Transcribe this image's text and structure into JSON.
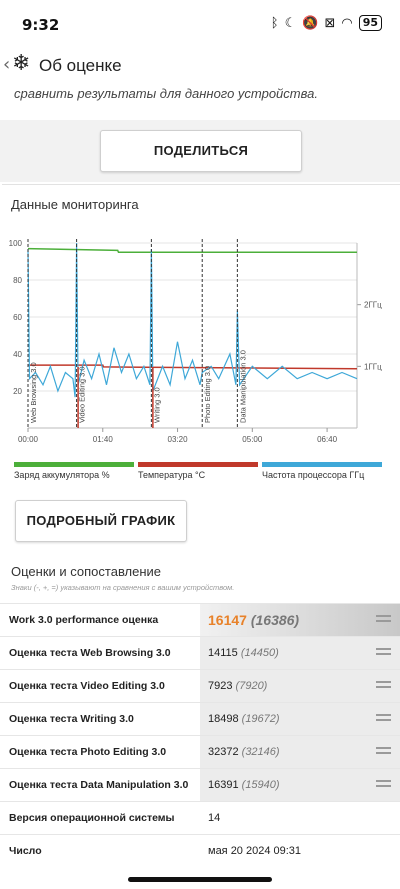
{
  "status_bar": {
    "time": "9:32",
    "icons": [
      "bluetooth-icon",
      "moon-icon",
      "mute-icon",
      "sim-off-icon",
      "wifi-icon"
    ],
    "battery": "95"
  },
  "app_bar": {
    "back_glyph": "‹",
    "title": "Об оценке"
  },
  "intro_text": "сравнить результаты для данного устройства.",
  "share_button": "ПОДЕЛИТЬСЯ",
  "monitoring": {
    "title": "Данные мониторинга",
    "legend": [
      {
        "label": "Заряд аккумулятора %",
        "color": "#4caf3a"
      },
      {
        "label": "Температура °C",
        "color": "#c0392b"
      },
      {
        "label": "Частота процессора ГГц",
        "color": "#3ea8d8"
      }
    ],
    "detail_button": "ПОДРОБНЫЙ ГРАФИК"
  },
  "chart_data": {
    "type": "line",
    "x_ticks": [
      "00:00",
      "01:40",
      "03:20",
      "05:00",
      "06:40"
    ],
    "y_left_ticks": [
      20,
      40,
      60,
      80,
      100
    ],
    "y_right_ticks": [
      "1ГГц",
      "2ГГц"
    ],
    "x_range_minutes": [
      0,
      440
    ],
    "y_left_range": [
      0,
      100
    ],
    "y_right_range_ghz": [
      0,
      3
    ],
    "markers": [
      {
        "label": "Web Browsing 3.0",
        "t_min": 0
      },
      {
        "label": "Video Editing 3.0",
        "t_min": 65
      },
      {
        "label": "Writing 3.0",
        "t_min": 165
      },
      {
        "label": "Photo Editing 3.0",
        "t_min": 233
      },
      {
        "label": "Data Manipulation 3.0",
        "t_min": 280
      }
    ],
    "series": [
      {
        "name": "Заряд аккумулятора %",
        "unit": "%",
        "points": [
          [
            0,
            97
          ],
          [
            120,
            96
          ],
          [
            121,
            95
          ],
          [
            440,
            95
          ]
        ]
      },
      {
        "name": "Температура °C",
        "unit": "°C",
        "points": [
          [
            0,
            34
          ],
          [
            100,
            34
          ],
          [
            101,
            33
          ],
          [
            440,
            32
          ]
        ]
      },
      {
        "name": "Частота процессора ГГц",
        "unit": "GHz",
        "points": [
          [
            0,
            2.9
          ],
          [
            2,
            0.8
          ],
          [
            10,
            0.9
          ],
          [
            20,
            0.7
          ],
          [
            30,
            1.0
          ],
          [
            40,
            0.6
          ],
          [
            50,
            0.9
          ],
          [
            60,
            0.8
          ],
          [
            63,
            0.5
          ],
          [
            65,
            3.0
          ],
          [
            67,
            0.7
          ],
          [
            75,
            1.1
          ],
          [
            85,
            0.8
          ],
          [
            95,
            1.2
          ],
          [
            105,
            0.7
          ],
          [
            115,
            1.3
          ],
          [
            125,
            0.9
          ],
          [
            135,
            1.2
          ],
          [
            145,
            0.8
          ],
          [
            155,
            1.0
          ],
          [
            163,
            0.7
          ],
          [
            165,
            2.9
          ],
          [
            167,
            0.6
          ],
          [
            180,
            1.0
          ],
          [
            190,
            0.7
          ],
          [
            200,
            1.4
          ],
          [
            210,
            0.8
          ],
          [
            220,
            1.1
          ],
          [
            230,
            0.7
          ],
          [
            233,
            0.9
          ],
          [
            245,
            1.0
          ],
          [
            255,
            0.8
          ],
          [
            270,
            1.2
          ],
          [
            278,
            0.7
          ],
          [
            280,
            1.9
          ],
          [
            283,
            0.7
          ],
          [
            300,
            1.0
          ],
          [
            320,
            0.8
          ],
          [
            340,
            1.0
          ],
          [
            360,
            0.8
          ],
          [
            380,
            0.9
          ],
          [
            400,
            0.8
          ],
          [
            420,
            0.9
          ],
          [
            440,
            0.8
          ]
        ]
      }
    ]
  },
  "scores": {
    "title": "Оценки и сопоставление",
    "note": "Знаки (-, +, =) указывают на сравнения с вашим устройством.",
    "rows": [
      {
        "label": "Work 3.0 performance оценка",
        "value": "16147",
        "compare": "(16386)",
        "main": true
      },
      {
        "label": "Оценка теста Web Browsing 3.0",
        "value": "14115",
        "compare": "(14450)"
      },
      {
        "label": "Оценка теста Video Editing 3.0",
        "value": "7923",
        "compare": "(7920)"
      },
      {
        "label": "Оценка теста Writing 3.0",
        "value": "18498",
        "compare": "(19672)"
      },
      {
        "label": "Оценка теста Photo Editing 3.0",
        "value": "32372",
        "compare": "(32146)"
      },
      {
        "label": "Оценка теста Data Manipulation 3.0",
        "value": "16391",
        "compare": "(15940)"
      },
      {
        "label": "Версия операционной системы",
        "value": "14",
        "compare": "",
        "plain": true
      },
      {
        "label": "Число",
        "value": "мая 20 2024 09:31",
        "compare": "",
        "plain": true
      }
    ]
  }
}
